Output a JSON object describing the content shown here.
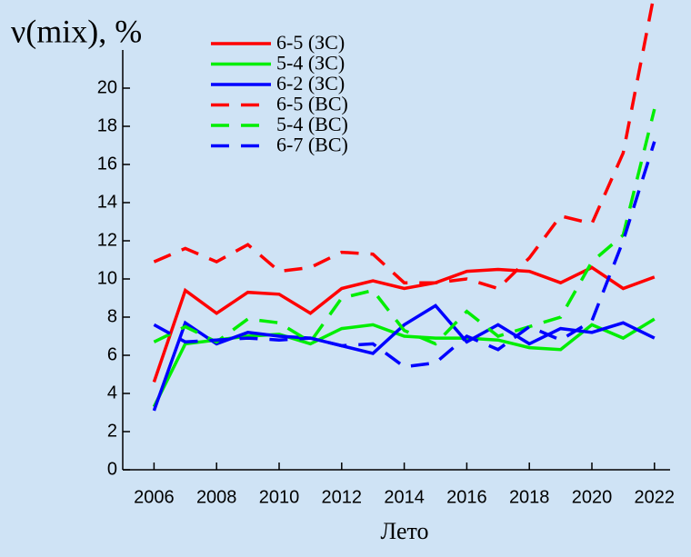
{
  "chart_data": {
    "type": "line",
    "y_label": "ν(mix), %",
    "x_label": "Лето",
    "x": [
      2006,
      2007,
      2008,
      2009,
      2010,
      2011,
      2012,
      2013,
      2014,
      2015,
      2016,
      2017,
      2018,
      2019,
      2020,
      2021,
      2022
    ],
    "series": [
      {
        "name": "6-5 (ЗС)",
        "color": "#ff0000",
        "style": "solid",
        "values": [
          4.6,
          9.4,
          8.2,
          9.3,
          9.2,
          8.2,
          9.5,
          9.9,
          9.5,
          9.8,
          10.4,
          10.5,
          10.4,
          9.8,
          10.6,
          9.5,
          10.1
        ]
      },
      {
        "name": "5-4 (ЗС)",
        "color": "#00ee00",
        "style": "solid",
        "values": [
          3.3,
          6.6,
          6.8,
          7.0,
          7.1,
          6.6,
          7.4,
          7.6,
          7.0,
          6.9,
          6.9,
          6.8,
          6.4,
          6.3,
          7.6,
          6.9,
          7.9
        ]
      },
      {
        "name": "6-2 (ЗС)",
        "color": "#0000ff",
        "style": "solid",
        "values": [
          3.1,
          7.7,
          6.6,
          7.2,
          7.0,
          6.9,
          6.5,
          6.1,
          7.6,
          8.6,
          6.7,
          7.6,
          6.6,
          7.4,
          7.2,
          7.7,
          6.9
        ]
      },
      {
        "name": "6-5 (ВС)",
        "color": "#ff0000",
        "style": "dashed",
        "values": [
          10.9,
          11.6,
          10.9,
          11.8,
          10.4,
          10.6,
          11.4,
          11.3,
          9.8,
          9.8,
          10.0,
          9.5,
          11.1,
          13.3,
          12.9,
          16.6,
          25
        ]
      },
      {
        "name": "5-4 (ВС)",
        "color": "#00ee00",
        "style": "dashed",
        "values": [
          6.7,
          7.5,
          6.7,
          7.9,
          7.7,
          6.7,
          9.0,
          9.4,
          7.3,
          6.6,
          8.3,
          7.0,
          7.5,
          8.0,
          10.9,
          12.3,
          18.9
        ]
      },
      {
        "name": "6-7 (ВС)",
        "color": "#0000ff",
        "style": "dashed",
        "values": [
          7.6,
          6.7,
          6.8,
          6.9,
          6.8,
          6.9,
          6.5,
          6.6,
          5.4,
          5.6,
          7.0,
          6.3,
          7.5,
          6.8,
          7.8,
          12.0,
          17.2
        ]
      }
    ],
    "xlim": [
      2005,
      2022.5
    ],
    "xticks": [
      2006,
      2008,
      2010,
      2012,
      2014,
      2016,
      2018,
      2020,
      2022
    ],
    "ylim": [
      0,
      22
    ],
    "yticks": [
      0,
      2,
      4,
      6,
      8,
      10,
      12,
      14,
      16,
      18,
      20
    ],
    "legend": "upper-left"
  }
}
